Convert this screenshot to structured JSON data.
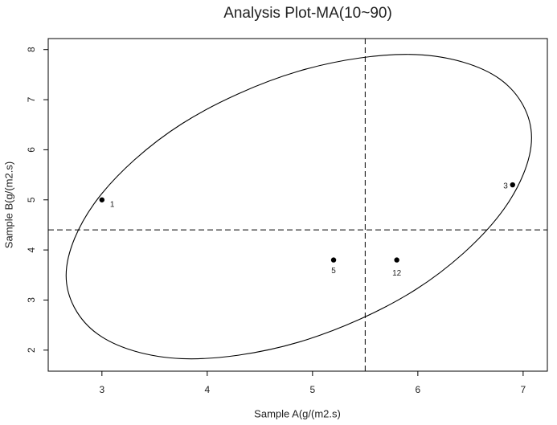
{
  "chart_data": {
    "type": "scatter",
    "title": "Analysis Plot-MA(10~90)",
    "x_label": "Sample A(g/(m2.s)",
    "y_label": "Sample B(g/(m2.s)",
    "x": [
      3,
      6.9,
      5.2,
      5.8
    ],
    "values": [
      5,
      5.3,
      3.8,
      3.8
    ],
    "point_labels": [
      "1",
      "3",
      "5",
      "12"
    ],
    "color": "#000000",
    "xlim": [
      2.49,
      7.23
    ],
    "ylim": [
      1.58,
      8.22
    ],
    "xticks": [
      3,
      4,
      5,
      6,
      7
    ],
    "yticks": [
      2,
      3,
      4,
      5,
      6,
      7,
      8
    ],
    "vline": 5.5,
    "hline": 4.4,
    "ellipse": {
      "x": [
        7.08,
        6.78,
        5.98,
        4.87,
        3.76,
        2.96,
        2.66,
        2.96,
        3.76,
        4.87,
        5.98,
        6.78
      ],
      "y": [
        6.24,
        7.41,
        7.9,
        7.57,
        6.52,
        5.02,
        3.49,
        2.32,
        1.83,
        2.16,
        3.21,
        4.71
      ]
    }
  }
}
